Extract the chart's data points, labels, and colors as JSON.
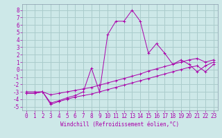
{
  "xlabel": "Windchill (Refroidissement éolien,°C)",
  "background_color": "#cde8e8",
  "grid_color": "#aacccc",
  "line_color": "#aa00aa",
  "spine_color": "#8899aa",
  "x_ticks": [
    0,
    1,
    2,
    3,
    4,
    5,
    6,
    7,
    8,
    9,
    10,
    11,
    12,
    13,
    14,
    15,
    16,
    17,
    18,
    19,
    20,
    21,
    22,
    23
  ],
  "y_ticks": [
    -5,
    -4,
    -3,
    -2,
    -1,
    0,
    1,
    2,
    3,
    4,
    5,
    6,
    7,
    8
  ],
  "ylim": [
    -5.5,
    8.8
  ],
  "xlim": [
    -0.5,
    23.5
  ],
  "series1_x": [
    0,
    1,
    2,
    3,
    4,
    5,
    6,
    7,
    8,
    9,
    10,
    11,
    12,
    13,
    14,
    15,
    16,
    17,
    18,
    19,
    20,
    21,
    22,
    23
  ],
  "series1_y": [
    -3.0,
    -3.0,
    -3.0,
    -4.5,
    -4.2,
    -3.8,
    -3.5,
    -3.0,
    0.2,
    -3.0,
    4.7,
    6.5,
    6.5,
    8.0,
    6.5,
    2.2,
    3.5,
    2.2,
    0.7,
    1.3,
    0.7,
    -0.3,
    0.5,
    1.0
  ],
  "series2_x": [
    0,
    1,
    2,
    3,
    4,
    5,
    6,
    7,
    8,
    9,
    10,
    11,
    12,
    13,
    14,
    15,
    16,
    17,
    18,
    19,
    20,
    21,
    22,
    23
  ],
  "series2_y": [
    -3.2,
    -3.2,
    -3.0,
    -4.7,
    -4.3,
    -4.0,
    -3.7,
    -3.5,
    -3.3,
    -3.0,
    -2.7,
    -2.4,
    -2.1,
    -1.8,
    -1.5,
    -1.2,
    -0.9,
    -0.6,
    -0.3,
    0.0,
    0.3,
    0.5,
    -0.3,
    0.7
  ],
  "series3_x": [
    0,
    1,
    2,
    3,
    4,
    5,
    6,
    7,
    8,
    9,
    10,
    11,
    12,
    13,
    14,
    15,
    16,
    17,
    18,
    19,
    20,
    21,
    22,
    23
  ],
  "series3_y": [
    -3.2,
    -3.2,
    -3.0,
    -3.4,
    -3.2,
    -3.0,
    -2.8,
    -2.6,
    -2.4,
    -2.1,
    -1.8,
    -1.5,
    -1.2,
    -0.9,
    -0.6,
    -0.2,
    0.1,
    0.4,
    0.7,
    1.0,
    1.3,
    1.5,
    1.0,
    1.3
  ],
  "tick_fontsize": 5.5,
  "xlabel_fontsize": 5.5,
  "lw": 0.7,
  "ms": 2.5,
  "mew": 0.7
}
